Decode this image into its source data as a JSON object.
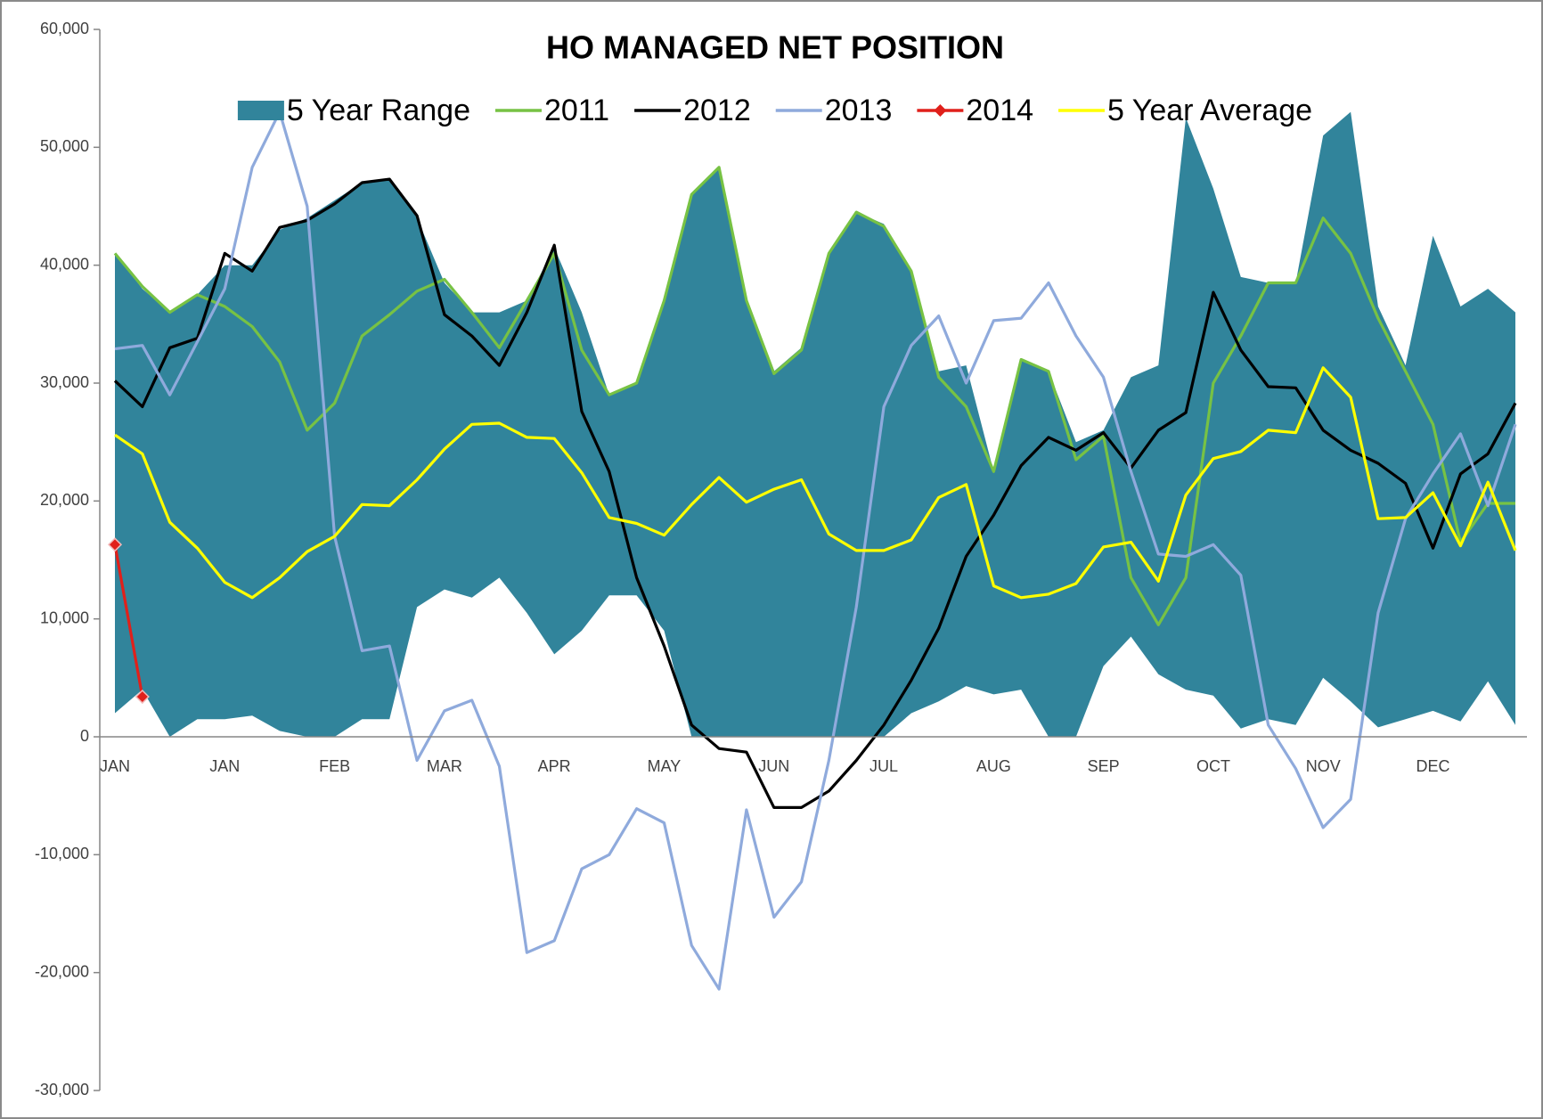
{
  "chart_data": {
    "type": "line",
    "title": "HO MANAGED NET POSITION",
    "categories": [
      "JAN",
      null,
      null,
      null,
      "JAN",
      null,
      null,
      null,
      "FEB",
      null,
      null,
      null,
      "MAR",
      null,
      null,
      null,
      "APR",
      null,
      null,
      null,
      "MAY",
      null,
      null,
      null,
      "JUN",
      null,
      null,
      null,
      "JUL",
      null,
      null,
      null,
      "AUG",
      null,
      null,
      null,
      "SEP",
      null,
      null,
      null,
      "OCT",
      null,
      null,
      null,
      "NOV",
      null,
      null,
      null,
      "DEC",
      null,
      null,
      null
    ],
    "ylim": [
      -30000,
      60000
    ],
    "yticks": [
      {
        "value": -30000,
        "label": "-30,000"
      },
      {
        "value": -20000,
        "label": "-20,000"
      },
      {
        "value": -10000,
        "label": "-10,000"
      },
      0,
      {
        "value": 10000,
        "label": "10,000"
      },
      {
        "value": 20000,
        "label": "20,000"
      },
      {
        "value": 30000,
        "label": "30,000"
      },
      {
        "value": 40000,
        "label": "40,000"
      },
      {
        "value": 50000,
        "label": "50,000"
      },
      {
        "value": 60000,
        "label": "60,000"
      }
    ],
    "grid": false,
    "series": [
      {
        "name": "5 Year Range",
        "type": "range",
        "color": "#31849b",
        "high": [
          41000,
          38000,
          36000,
          37500,
          40000,
          40000,
          43000,
          44000,
          45500,
          47000,
          47300,
          44000,
          38500,
          36000,
          36000,
          37000,
          41500,
          36000,
          29000,
          30000,
          37000,
          46000,
          48300,
          37000,
          31000,
          33000,
          41000,
          44500,
          43500,
          39500,
          31000,
          31500,
          22500,
          32000,
          31000,
          25000,
          26000,
          30500,
          31500,
          52500,
          46500,
          39000,
          38500,
          38500,
          51000,
          53000,
          36500,
          31500,
          42500,
          36500,
          38000,
          36000
        ],
        "low": [
          2000,
          4000,
          0,
          1500,
          1500,
          1800,
          500,
          0,
          0,
          1500,
          1500,
          11000,
          12500,
          11800,
          13500,
          10500,
          7000,
          9000,
          12000,
          12000,
          9000,
          0,
          0,
          0,
          0,
          0,
          0,
          0,
          0,
          2000,
          3000,
          4300,
          3600,
          4000,
          0,
          0,
          6000,
          8500,
          5300,
          4000,
          3500,
          700,
          1500,
          1000,
          5000,
          3000,
          800,
          1500,
          2200,
          1300,
          4700,
          1000
        ]
      },
      {
        "name": "2011",
        "color": "#77c244",
        "values": [
          41000,
          38200,
          36000,
          37500,
          36500,
          34800,
          31800,
          26000,
          28300,
          34000,
          35800,
          37800,
          38800,
          36000,
          33000,
          37000,
          41000,
          32800,
          29000,
          30000,
          37000,
          46000,
          48300,
          37000,
          30800,
          32800,
          41000,
          44500,
          43300,
          39500,
          30500,
          28000,
          22500,
          32000,
          31000,
          23500,
          25500,
          13500,
          9500,
          13500,
          30000,
          34000,
          38500,
          38500,
          44000,
          41000,
          35500,
          31000,
          26500,
          16500,
          19800,
          19800
        ]
      },
      {
        "name": "2012",
        "color": "#000000",
        "values": [
          30200,
          28000,
          33000,
          33800,
          41000,
          39500,
          43200,
          43800,
          45200,
          47000,
          47300,
          44200,
          35800,
          34000,
          31500,
          36000,
          41700,
          27600,
          22500,
          13500,
          7700,
          1000,
          -1000,
          -1300,
          -6000,
          -6000,
          -4600,
          -2000,
          1000,
          4800,
          9200,
          15300,
          18800,
          23000,
          25400,
          24300,
          25800,
          22800,
          26000,
          27500,
          37700,
          32800,
          29700,
          29600,
          26000,
          24300,
          23200,
          21500,
          16000,
          22300,
          24000,
          28300
        ]
      },
      {
        "name": "2013",
        "color": "#8faadc",
        "values": [
          32900,
          33200,
          29000,
          33500,
          38000,
          48300,
          53000,
          45000,
          17000,
          7300,
          7700,
          -2000,
          2200,
          3100,
          -2500,
          -18300,
          -17300,
          -11200,
          -10000,
          -6100,
          -7300,
          -17700,
          -21400,
          -6200,
          -15300,
          -12300,
          -2000,
          11000,
          28000,
          33200,
          35700,
          30000,
          35300,
          35500,
          38500,
          34000,
          30500,
          22500,
          15500,
          15300,
          16300,
          13700,
          1000,
          -2700,
          -7700,
          -5300,
          10500,
          18500,
          22300,
          25700,
          19600,
          26500
        ]
      },
      {
        "name": "2014",
        "color": "#e0201b",
        "marker": "diamond",
        "values": [
          16300,
          3400,
          null,
          null,
          null,
          null,
          null,
          null,
          null,
          null,
          null,
          null,
          null,
          null,
          null,
          null,
          null,
          null,
          null,
          null,
          null,
          null,
          null,
          null,
          null,
          null,
          null,
          null,
          null,
          null,
          null,
          null,
          null,
          null,
          null,
          null,
          null,
          null,
          null,
          null,
          null,
          null,
          null,
          null,
          null,
          null,
          null,
          null,
          null,
          null,
          null,
          null
        ]
      },
      {
        "name": "5 Year Average",
        "color": "#ffff00",
        "values": [
          25600,
          24000,
          18200,
          16000,
          13100,
          11800,
          13500,
          15700,
          17000,
          19700,
          19600,
          21800,
          24400,
          26500,
          26600,
          25400,
          25300,
          22400,
          18600,
          18100,
          17100,
          19700,
          22000,
          19900,
          21000,
          21800,
          17200,
          15800,
          15800,
          16700,
          20300,
          21400,
          12800,
          11800,
          12100,
          13000,
          16100,
          16500,
          13200,
          20500,
          23600,
          24200,
          26000,
          25800,
          31300,
          28800,
          18500,
          18600,
          20700,
          16200,
          21600,
          15800
        ]
      }
    ]
  }
}
